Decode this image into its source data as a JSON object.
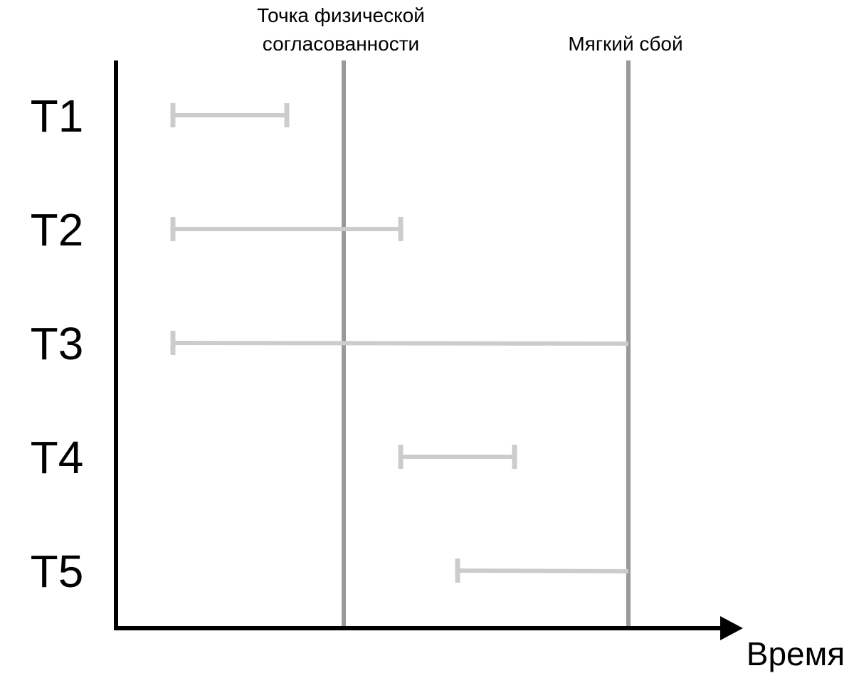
{
  "diagram": {
    "axis_label": "Время",
    "markers": [
      {
        "key": "checkpoint",
        "lines": [
          "Точка физической",
          "согласованности"
        ],
        "time": 4
      },
      {
        "key": "soft-failure",
        "lines": [
          "Мягкий сбой"
        ],
        "time": 9
      }
    ],
    "transactions": [
      {
        "label": "T1",
        "start": 1,
        "end": 3,
        "end_cap": true
      },
      {
        "label": "T2",
        "start": 1,
        "end": 5,
        "end_cap": true
      },
      {
        "label": "T3",
        "start": 1,
        "end": 9,
        "end_cap": false
      },
      {
        "label": "T4",
        "start": 5,
        "end": 7,
        "end_cap": true
      },
      {
        "label": "T5",
        "start": 6,
        "end": 9,
        "end_cap": false
      }
    ]
  },
  "colors": {
    "axis": "#000000",
    "marker_line": "#999999",
    "interval": "#cccccc"
  }
}
